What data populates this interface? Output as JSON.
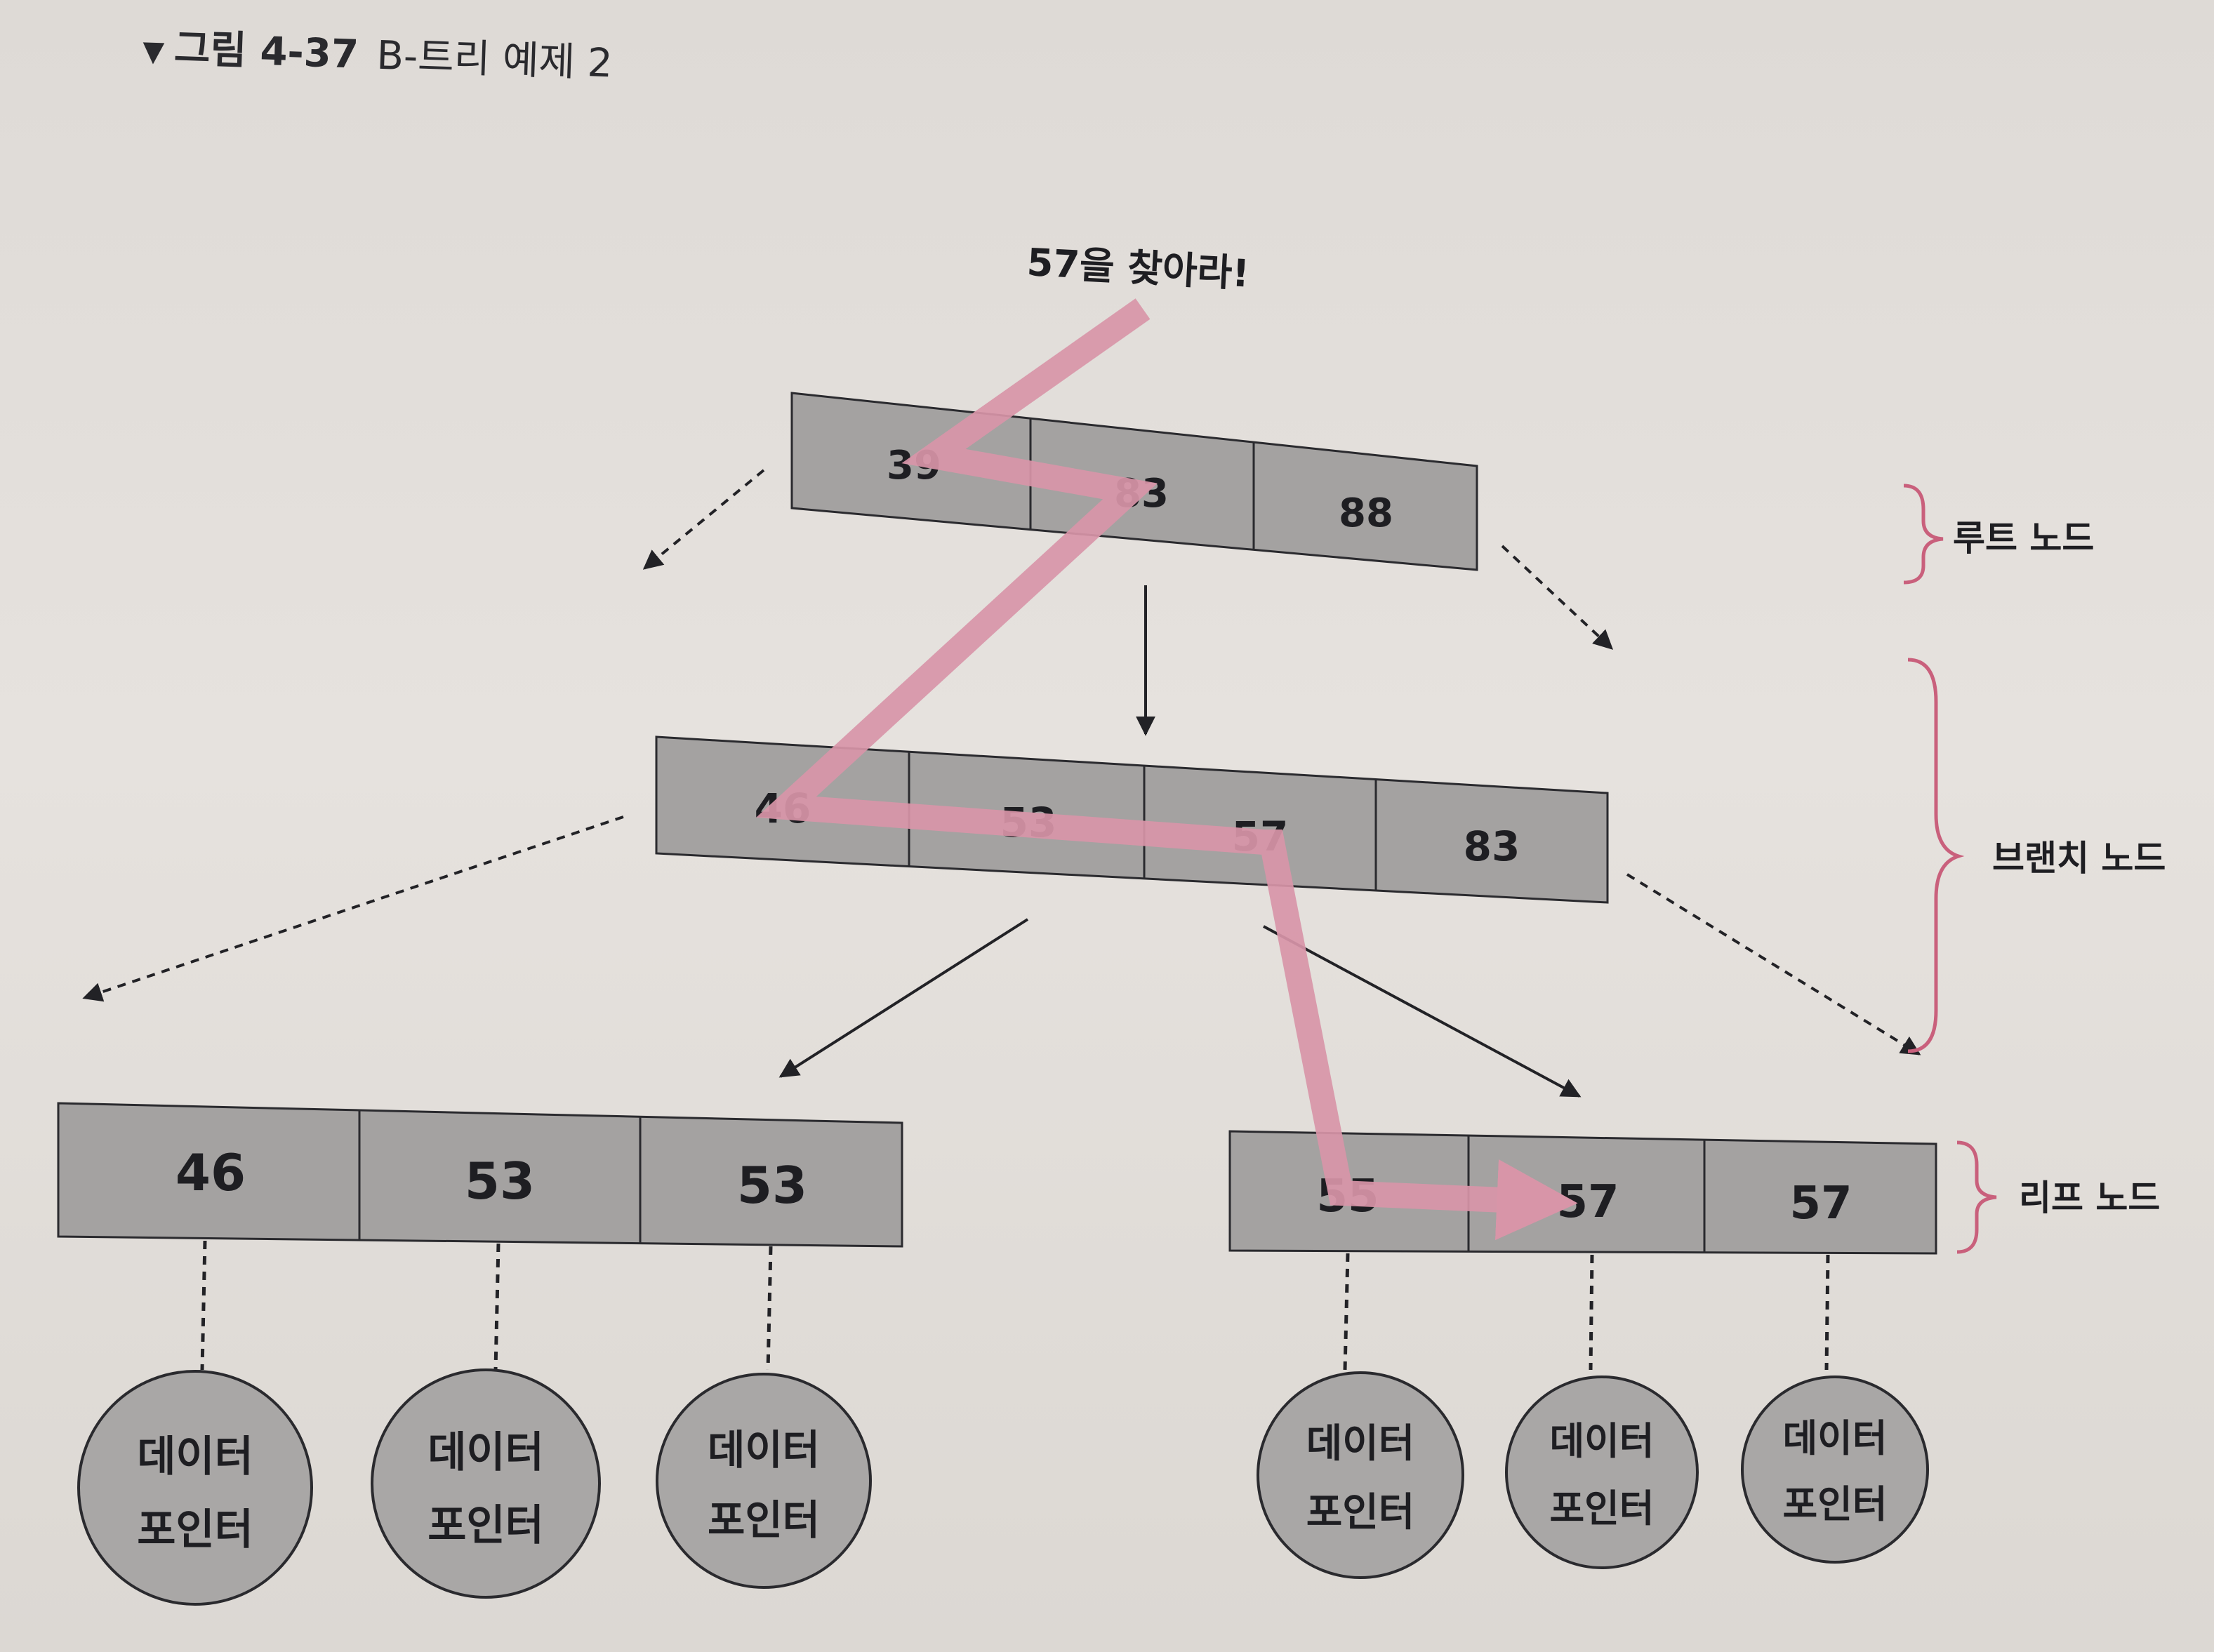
{
  "figure": {
    "marker": "▼",
    "number": "그림 4-37",
    "caption": "B-트리 예제 2"
  },
  "annotation": "57을 찾아라!",
  "root_node": {
    "keys": [
      "39",
      "83",
      "88"
    ],
    "label": "루트 노드"
  },
  "branch_node": {
    "keys": [
      "46",
      "53",
      "57",
      "83"
    ],
    "label": "브랜치 노드"
  },
  "leaf_nodes": {
    "left": {
      "keys": [
        "46",
        "53",
        "53"
      ]
    },
    "right": {
      "keys": [
        "55",
        "57",
        "57"
      ]
    },
    "label": "리프 노드"
  },
  "data_pointer": {
    "line1": "데이터",
    "line2": "포인터"
  },
  "colors": {
    "node_fill": "#a4a2a1",
    "node_stroke": "#2a2a2e",
    "pointer_fill": "#a9a7a6",
    "search_path": "#d895a8",
    "brace": "#c9607c",
    "arrow": "#222226",
    "background": "#e4e0dc"
  }
}
